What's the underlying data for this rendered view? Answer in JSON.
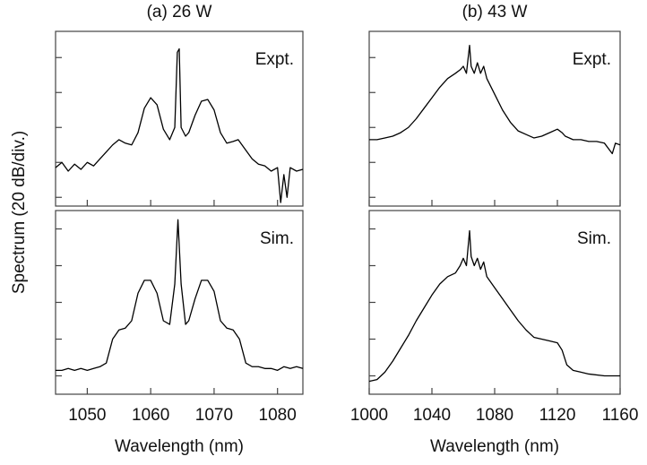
{
  "chart_data": [
    {
      "type": "line",
      "title": "(a) 26 W",
      "annotation": "Expt.",
      "color": "#000000",
      "y_label": "Spectrum (20 dB/div.)",
      "xlim": [
        1045,
        1084
      ],
      "xticks": [
        1050,
        1060,
        1070,
        1080
      ],
      "ylim": [
        0,
        100
      ],
      "yticks": [
        5,
        25,
        45,
        65,
        85
      ],
      "x": [
        1045,
        1046,
        1047,
        1048,
        1049,
        1050,
        1051,
        1052,
        1053,
        1054,
        1055,
        1056,
        1057,
        1058,
        1059,
        1060,
        1061,
        1062,
        1063,
        1063.8,
        1064.2,
        1064.5,
        1064.8,
        1065.5,
        1066,
        1067,
        1068,
        1069,
        1070,
        1071,
        1072,
        1073,
        1073.8,
        1075,
        1076,
        1077,
        1078,
        1079,
        1080,
        1080.5,
        1081,
        1081.5,
        1082,
        1083,
        1084
      ],
      "values": [
        22,
        25,
        20,
        24,
        21,
        25,
        23,
        27,
        31,
        35,
        38,
        36,
        35,
        42,
        56,
        62,
        58,
        44,
        38,
        45,
        88,
        90,
        45,
        40,
        42,
        52,
        60,
        61,
        55,
        42,
        36,
        37,
        38,
        32,
        27,
        24,
        23,
        20,
        22,
        2,
        18,
        5,
        22,
        20,
        21
      ]
    },
    {
      "type": "line",
      "title": "(b) 43 W",
      "annotation": "Expt.",
      "color": "#000000",
      "xlim": [
        1000,
        1160
      ],
      "xticks": [
        1000,
        1040,
        1080,
        1120,
        1160
      ],
      "ylim": [
        0,
        100
      ],
      "yticks": [
        5,
        25,
        45,
        65,
        85
      ],
      "x": [
        1000,
        1005,
        1010,
        1015,
        1020,
        1025,
        1030,
        1035,
        1040,
        1045,
        1050,
        1055,
        1058,
        1060,
        1062,
        1064,
        1065,
        1067,
        1069,
        1071,
        1073,
        1075,
        1080,
        1085,
        1090,
        1095,
        1100,
        1105,
        1110,
        1115,
        1120,
        1123,
        1125,
        1130,
        1135,
        1140,
        1145,
        1150,
        1155,
        1157,
        1160
      ],
      "values": [
        38,
        38,
        39,
        40,
        42,
        45,
        50,
        56,
        62,
        68,
        73,
        76,
        78,
        80,
        76,
        92,
        80,
        76,
        82,
        76,
        80,
        73,
        64,
        55,
        48,
        43,
        41,
        39,
        40,
        42,
        44,
        42,
        40,
        38,
        38,
        37,
        37,
        36,
        30,
        36,
        35
      ]
    },
    {
      "type": "line",
      "annotation": "Sim.",
      "color": "#000000",
      "x_label": "Wavelength (nm)",
      "xlim": [
        1045,
        1084
      ],
      "xticks": [
        1050,
        1060,
        1070,
        1080
      ],
      "ylim": [
        0,
        100
      ],
      "yticks": [
        10,
        30,
        50,
        70,
        90
      ],
      "x": [
        1045,
        1046,
        1047,
        1048,
        1049,
        1050,
        1051,
        1052,
        1053,
        1054,
        1055,
        1056,
        1057,
        1058,
        1059,
        1060,
        1061,
        1062,
        1063,
        1063.8,
        1064.3,
        1064.8,
        1065.5,
        1066,
        1067,
        1068,
        1069,
        1070,
        1071,
        1072,
        1073,
        1074,
        1075,
        1076,
        1077,
        1078,
        1079,
        1080,
        1081,
        1082,
        1083,
        1084
      ],
      "values": [
        13,
        13,
        14,
        13,
        14,
        13,
        14,
        15,
        17,
        30,
        35,
        36,
        40,
        55,
        62,
        62,
        55,
        40,
        38,
        60,
        95,
        60,
        38,
        40,
        52,
        62,
        62,
        56,
        40,
        36,
        35,
        30,
        17,
        15,
        15,
        14,
        14,
        13,
        15,
        14,
        15,
        14
      ]
    },
    {
      "type": "line",
      "annotation": "Sim.",
      "color": "#000000",
      "x_label": "Wavelength (nm)",
      "xlim": [
        1000,
        1160
      ],
      "xticks": [
        1000,
        1040,
        1080,
        1120,
        1160
      ],
      "ylim": [
        0,
        100
      ],
      "yticks": [
        10,
        30,
        50,
        70,
        90
      ],
      "x": [
        1000,
        1005,
        1010,
        1015,
        1020,
        1025,
        1030,
        1035,
        1040,
        1045,
        1050,
        1055,
        1058,
        1060,
        1062,
        1064,
        1065,
        1067,
        1069,
        1071,
        1073,
        1075,
        1080,
        1085,
        1090,
        1095,
        1100,
        1105,
        1110,
        1115,
        1120,
        1123,
        1126,
        1130,
        1135,
        1140,
        1150,
        1160
      ],
      "values": [
        7,
        8,
        12,
        18,
        25,
        32,
        40,
        47,
        54,
        60,
        64,
        66,
        70,
        74,
        70,
        89,
        75,
        70,
        74,
        68,
        72,
        64,
        58,
        52,
        46,
        40,
        35,
        31,
        30,
        29,
        28,
        24,
        16,
        13,
        12,
        11,
        10,
        10
      ]
    }
  ]
}
